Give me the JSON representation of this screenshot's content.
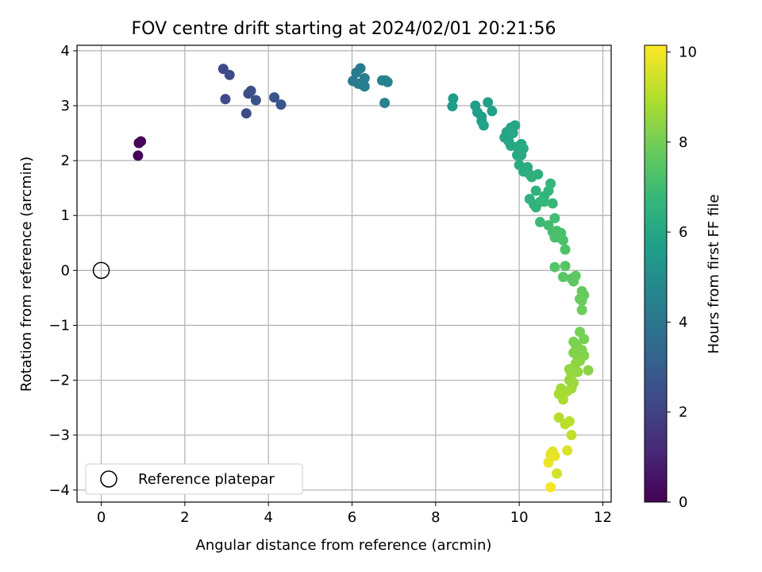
{
  "chart_data": {
    "type": "scatter",
    "title": "FOV centre drift starting at 2024/02/01 20:21:56",
    "xlabel": "Angular distance from reference (arcmin)",
    "ylabel": "Rotation from reference (arcmin)",
    "xlim": [
      -0.58,
      12.2
    ],
    "ylim": [
      -4.22,
      4.1
    ],
    "xticks": [
      0,
      2,
      4,
      6,
      8,
      10,
      12
    ],
    "yticks": [
      -4,
      -3,
      -2,
      -1,
      0,
      1,
      2,
      3,
      4
    ],
    "grid": true,
    "legend": {
      "position": "lower-left",
      "entries": [
        "Reference platepar"
      ]
    },
    "reference_point": {
      "x": 0,
      "y": 0,
      "label": "Reference platepar",
      "marker": "open-circle"
    },
    "colorbar": {
      "label": "Hours from first FF file",
      "colormap": "viridis",
      "range": [
        0,
        10.15
      ],
      "ticks": [
        0,
        2,
        4,
        6,
        8,
        10
      ]
    },
    "series": [
      {
        "x": [
          0.9,
          0.95,
          0.88,
          2.92,
          3.07,
          2.97,
          3.52,
          3.58,
          3.7,
          3.47,
          4.14,
          4.3,
          6.1,
          6.2,
          6.3,
          6.02,
          6.15,
          6.3,
          6.25,
          6.72,
          6.8,
          6.85,
          6.78,
          8.42,
          8.4,
          9.0,
          9.1,
          9.25,
          9.35,
          8.95,
          9.1,
          9.15,
          9.7,
          9.8,
          9.9,
          9.65,
          9.75,
          9.85,
          10.05,
          9.95,
          10.0,
          9.8,
          10.1,
          10.05,
          9.95,
          10.0,
          10.2,
          10.1,
          10.25,
          10.45,
          10.3,
          10.4,
          10.75,
          10.7,
          10.6,
          10.35,
          10.25,
          10.5,
          10.4,
          10.6,
          10.8,
          10.5,
          10.7,
          10.85,
          10.8,
          10.95,
          10.9,
          11.0,
          10.85,
          11.05,
          11.1,
          10.85,
          11.1,
          11.05,
          11.25,
          11.35,
          11.3,
          11.5,
          11.55,
          11.45,
          11.5,
          11.5,
          11.45,
          11.55,
          11.3,
          11.35,
          11.4,
          11.3,
          11.5,
          11.55,
          11.4,
          11.45,
          11.65,
          11.35,
          11.2,
          11.4,
          11.25,
          11.2,
          11.3,
          11.25,
          11.0,
          11.15,
          10.95,
          11.05,
          10.95,
          11.2,
          11.1,
          11.25,
          10.8,
          10.75,
          10.85,
          10.7,
          11.15,
          10.9,
          10.75
        ],
        "y": [
          2.32,
          2.35,
          2.09,
          3.67,
          3.56,
          3.12,
          3.22,
          3.27,
          3.1,
          2.86,
          3.15,
          3.02,
          3.6,
          3.68,
          3.5,
          3.45,
          3.4,
          3.35,
          3.38,
          3.46,
          3.46,
          3.43,
          3.05,
          3.13,
          2.99,
          2.88,
          2.8,
          3.06,
          2.9,
          3.0,
          2.72,
          2.64,
          2.52,
          2.6,
          2.64,
          2.42,
          2.35,
          2.5,
          2.3,
          2.25,
          2.18,
          2.27,
          2.22,
          2.1,
          2.1,
          1.92,
          1.88,
          1.8,
          1.75,
          1.75,
          1.7,
          1.45,
          1.58,
          1.45,
          1.35,
          1.2,
          1.3,
          1.25,
          1.15,
          1.25,
          1.22,
          0.88,
          0.82,
          0.95,
          0.7,
          0.6,
          0.72,
          0.68,
          0.6,
          0.55,
          0.38,
          0.06,
          0.08,
          -0.12,
          -0.15,
          -0.1,
          -0.2,
          -0.38,
          -0.45,
          -0.52,
          -0.55,
          -0.72,
          -1.12,
          -1.25,
          -1.3,
          -1.35,
          -1.4,
          -1.5,
          -1.45,
          -1.55,
          -1.6,
          -1.65,
          -1.82,
          -1.7,
          -1.8,
          -1.85,
          -1.9,
          -2.0,
          -2.05,
          -2.15,
          -2.15,
          -2.2,
          -2.25,
          -2.35,
          -2.68,
          -2.75,
          -2.8,
          -3.0,
          -3.3,
          -3.35,
          -3.38,
          -3.5,
          -3.28,
          -3.7,
          -3.95
        ],
        "hours": [
          0.1,
          0.15,
          0.05,
          2.2,
          2.3,
          2.25,
          2.4,
          2.45,
          2.5,
          2.35,
          2.6,
          2.65,
          4.2,
          4.25,
          4.3,
          4.15,
          4.2,
          4.35,
          4.3,
          4.45,
          4.5,
          4.55,
          4.5,
          5.6,
          5.6,
          5.65,
          5.7,
          5.75,
          5.8,
          5.7,
          5.75,
          5.8,
          5.9,
          6.0,
          6.0,
          5.95,
          6.0,
          6.05,
          6.1,
          6.1,
          6.15,
          6.1,
          6.2,
          6.15,
          6.15,
          6.2,
          6.25,
          6.3,
          6.35,
          6.4,
          6.45,
          6.5,
          6.7,
          6.7,
          6.6,
          6.5,
          6.5,
          6.6,
          6.55,
          6.75,
          6.8,
          6.9,
          7.0,
          7.05,
          7.1,
          7.15,
          7.15,
          7.2,
          7.2,
          7.25,
          7.3,
          7.4,
          7.45,
          7.5,
          7.55,
          7.6,
          7.6,
          7.7,
          7.75,
          7.8,
          7.8,
          7.85,
          8.0,
          8.05,
          8.1,
          8.1,
          8.15,
          8.2,
          8.2,
          8.25,
          8.25,
          8.3,
          8.35,
          8.4,
          8.5,
          8.5,
          8.55,
          8.6,
          8.65,
          8.7,
          8.75,
          8.8,
          8.85,
          8.9,
          9.0,
          9.1,
          9.15,
          9.2,
          9.7,
          9.75,
          9.8,
          9.85,
          9.6,
          9.5,
          10.0
        ]
      }
    ]
  }
}
